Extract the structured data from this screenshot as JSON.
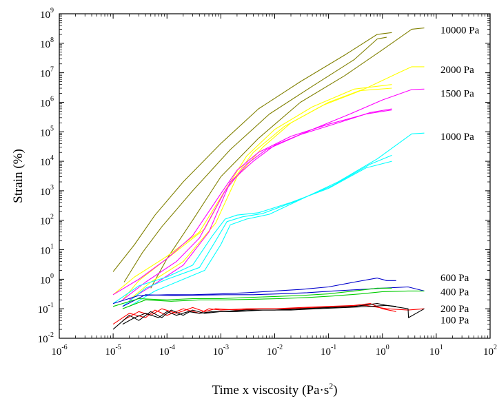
{
  "chart_data": {
    "type": "line",
    "title": "",
    "xlabel": "Time x viscosity (Pa·s",
    "xlabel_sup": "2",
    "xlabel_close": ")",
    "ylabel": "Strain (%)",
    "xscale": "log",
    "yscale": "log",
    "xlim": [
      1e-06,
      100
    ],
    "ylim": [
      0.01,
      1000000000.0
    ],
    "grid": false,
    "legend": "none",
    "x_ticks": [
      {
        "base": "10",
        "exp": "-6"
      },
      {
        "base": "10",
        "exp": "-5"
      },
      {
        "base": "10",
        "exp": "-4"
      },
      {
        "base": "10",
        "exp": "-3"
      },
      {
        "base": "10",
        "exp": "-2"
      },
      {
        "base": "10",
        "exp": "-1"
      },
      {
        "base": "10",
        "exp": "0"
      },
      {
        "base": "10",
        "exp": "1"
      },
      {
        "base": "10",
        "exp": "2"
      }
    ],
    "y_ticks": [
      {
        "base": "10",
        "exp": "-2"
      },
      {
        "base": "10",
        "exp": "-1"
      },
      {
        "base": "10",
        "exp": "0"
      },
      {
        "base": "10",
        "exp": "1"
      },
      {
        "base": "10",
        "exp": "2"
      },
      {
        "base": "10",
        "exp": "3"
      },
      {
        "base": "10",
        "exp": "4"
      },
      {
        "base": "10",
        "exp": "5"
      },
      {
        "base": "10",
        "exp": "6"
      },
      {
        "base": "10",
        "exp": "7"
      },
      {
        "base": "10",
        "exp": "8"
      },
      {
        "base": "10",
        "exp": "9"
      }
    ],
    "groups": [
      {
        "label": "10000 Pa",
        "color": "#808000",
        "label_at": [
          12,
          280000000.0
        ],
        "series": [
          {
            "x": [
              1e-05,
              2.5e-05,
              6e-05,
              0.0002,
              0.001,
              0.005,
              0.03,
              0.2,
              0.8,
              1.5
            ],
            "y": [
              1.8,
              15,
              150,
              2000,
              40000,
              600000,
              5000000,
              40000000,
              200000000,
              230000000
            ]
          },
          {
            "x": [
              1.6e-05,
              3.5e-05,
              8e-05,
              0.0003,
              0.0015,
              0.008,
              0.05,
              0.3,
              0.8,
              1.2
            ],
            "y": [
              0.8,
              8,
              60,
              1000,
              25000,
              400000,
              3500000,
              28000000,
              140000000,
              160000000
            ]
          },
          {
            "x": [
              5e-05,
              0.0001,
              0.0003,
              0.001,
              0.005,
              0.03,
              0.2,
              1,
              3.5,
              6
            ],
            "y": [
              0.5,
              5,
              100,
              3000,
              60000,
              1000000,
              8000000,
              60000000,
              300000000,
              330000000
            ]
          }
        ]
      },
      {
        "label": "2000 Pa",
        "color": "#ffff00",
        "label_at": [
          12,
          13000000.0
        ],
        "series": [
          {
            "x": [
              1e-05,
              2.5e-05,
              0.0001,
              0.0004,
              0.001,
              0.003,
              0.01,
              0.05,
              0.3,
              1.5
            ],
            "y": [
              0.3,
              1.2,
              6,
              40,
              600,
              15000,
              120000,
              700000,
              2800000,
              4000000
            ]
          },
          {
            "x": [
              1.5e-05,
              3e-05,
              0.0001,
              0.0005,
              0.0012,
              0.004,
              0.015,
              0.08,
              0.4,
              1.5
            ],
            "y": [
              0.2,
              0.9,
              5,
              50,
              1000,
              20000,
              150000,
              800000,
              2500000,
              3000000
            ]
          },
          {
            "x": [
              2e-05,
              5e-05,
              0.0002,
              0.0008,
              0.002,
              0.006,
              0.02,
              0.1,
              0.5,
              2,
              3.5,
              6
            ],
            "y": [
              0.2,
              0.8,
              4,
              80,
              3000,
              30000,
              200000,
              1000000,
              3000000,
              10000000,
              16000000,
              16000000
            ]
          }
        ]
      },
      {
        "label": "1500 Pa",
        "color": "#ff00ff",
        "label_at": [
          12,
          2000000.0
        ],
        "series": [
          {
            "x": [
              1e-05,
              3e-05,
              0.0001,
              0.0003,
              0.001,
              0.002,
              0.005,
              0.02,
              0.1,
              0.5,
              1.5
            ],
            "y": [
              0.3,
              1,
              5,
              30,
              800,
              5000,
              20000,
              70000,
              180000,
              400000,
              550000
            ]
          },
          {
            "x": [
              1.5e-05,
              4e-05,
              0.00015,
              0.0004,
              0.0012,
              0.003,
              0.007,
              0.03,
              0.15,
              0.6,
              1.5
            ],
            "y": [
              0.2,
              0.8,
              4,
              25,
              1000,
              8000,
              25000,
              80000,
              200000,
              450000,
              600000
            ]
          },
          {
            "x": [
              2e-05,
              6e-05,
              0.0002,
              0.0006,
              0.0015,
              0.004,
              0.01,
              0.05,
              0.25,
              1,
              3.5,
              6
            ],
            "y": [
              0.2,
              0.7,
              3,
              40,
              2000,
              10000,
              35000,
              120000,
              400000,
              1200000,
              2700000,
              2800000
            ]
          }
        ]
      },
      {
        "label": "1000 Pa",
        "color": "#00ffff",
        "label_at": [
          12,
          70000.0
        ],
        "series": [
          {
            "x": [
              1e-05,
              3e-05,
              0.0001,
              0.0003,
              0.0007,
              0.0012,
              0.002,
              0.005,
              0.02,
              0.1,
              0.5,
              1.5
            ],
            "y": [
              0.15,
              0.6,
              1.2,
              3,
              30,
              110,
              150,
              180,
              400,
              1200,
              6000,
              10000
            ]
          },
          {
            "x": [
              1.5e-05,
              4e-05,
              0.0001,
              0.0004,
              0.0008,
              0.0013,
              0.0025,
              0.006,
              0.025,
              0.12,
              0.6,
              1.5
            ],
            "y": [
              0.12,
              0.5,
              1,
              2.5,
              20,
              90,
              130,
              170,
              450,
              1500,
              8000,
              16000
            ]
          },
          {
            "x": [
              2e-05,
              6e-05,
              0.00015,
              0.0005,
              0.001,
              0.0015,
              0.003,
              0.008,
              0.03,
              0.15,
              0.8,
              3.5,
              6
            ],
            "y": [
              0.12,
              0.4,
              0.8,
              2,
              15,
              70,
              110,
              160,
              500,
              2000,
              12000,
              85000,
              90000
            ]
          }
        ]
      },
      {
        "label": "600 Pa",
        "color": "#0000cc",
        "label_at": [
          12,
          1.15
        ],
        "series": [
          {
            "x": [
              1e-05,
              3e-05,
              0.0001,
              0.0003,
              0.001,
              0.003,
              0.01,
              0.03,
              0.1,
              0.3,
              0.8,
              1.2,
              1.8
            ],
            "y": [
              0.15,
              0.28,
              0.3,
              0.3,
              0.32,
              0.35,
              0.4,
              0.45,
              0.55,
              0.8,
              1.1,
              0.9,
              0.9
            ]
          },
          {
            "x": [
              1.5e-05,
              4e-05,
              0.00012,
              0.0004,
              0.0012,
              0.004,
              0.012,
              0.04,
              0.12,
              0.4,
              1,
              3,
              6
            ],
            "y": [
              0.12,
              0.3,
              0.28,
              0.29,
              0.3,
              0.3,
              0.32,
              0.35,
              0.4,
              0.45,
              0.5,
              0.55,
              0.4
            ]
          }
        ]
      },
      {
        "label": "400 Pa",
        "color": "#00cc00",
        "label_at": [
          12,
          0.38
        ],
        "series": [
          {
            "x": [
              1e-05,
              3e-05,
              0.0001,
              0.0003,
              0.001,
              0.003,
              0.01,
              0.03,
              0.1,
              0.3,
              0.8,
              1.5
            ],
            "y": [
              0.12,
              0.22,
              0.2,
              0.22,
              0.22,
              0.24,
              0.26,
              0.28,
              0.32,
              0.4,
              0.5,
              0.5
            ]
          },
          {
            "x": [
              1.5e-05,
              4e-05,
              0.00012,
              0.0004,
              0.0012,
              0.004,
              0.012,
              0.04,
              0.12,
              0.4,
              1,
              3,
              6
            ],
            "y": [
              0.1,
              0.2,
              0.18,
              0.2,
              0.2,
              0.21,
              0.22,
              0.24,
              0.27,
              0.32,
              0.38,
              0.4,
              0.4
            ]
          }
        ]
      },
      {
        "label": "200 Pa",
        "color": "#ff0000",
        "label_at": [
          12,
          0.1
        ],
        "series": [
          {
            "x": [
              1e-05,
              2e-05,
              4e-05,
              6e-05,
              0.0001,
              0.0002,
              0.0004,
              0.0006,
              0.001,
              0.003,
              0.01,
              0.03,
              0.1,
              0.3,
              0.6,
              1,
              1.8
            ],
            "y": [
              0.03,
              0.07,
              0.05,
              0.09,
              0.06,
              0.1,
              0.07,
              0.1,
              0.09,
              0.1,
              0.1,
              0.11,
              0.12,
              0.13,
              0.15,
              0.1,
              0.08
            ]
          },
          {
            "x": [
              1.5e-05,
              3e-05,
              5e-05,
              8e-05,
              0.00015,
              0.0003,
              0.0005,
              0.0008,
              0.002,
              0.006,
              0.02,
              0.06,
              0.2,
              0.5,
              1.2,
              3,
              6
            ],
            "y": [
              0.04,
              0.08,
              0.06,
              0.1,
              0.07,
              0.11,
              0.08,
              0.1,
              0.09,
              0.1,
              0.1,
              0.11,
              0.12,
              0.13,
              0.1,
              0.09,
              0.1
            ]
          }
        ]
      },
      {
        "label": "100 Pa",
        "color": "#000000",
        "label_at": [
          12,
          0.042
        ],
        "series": [
          {
            "x": [
              1e-05,
              2e-05,
              3e-05,
              5e-05,
              8e-05,
              0.00012,
              0.0002,
              0.0003,
              0.0005,
              0.001,
              0.003,
              0.01,
              0.03,
              0.1,
              0.3,
              0.8,
              1.2,
              1.8
            ],
            "y": [
              0.02,
              0.06,
              0.04,
              0.08,
              0.05,
              0.09,
              0.06,
              0.09,
              0.07,
              0.08,
              0.09,
              0.09,
              0.1,
              0.11,
              0.12,
              0.15,
              0.13,
              0.12
            ]
          },
          {
            "x": [
              1.5e-05,
              2.5e-05,
              4e-05,
              7e-05,
              0.0001,
              0.00015,
              0.00025,
              0.0004,
              0.0007,
              0.002,
              0.006,
              0.02,
              0.06,
              0.2,
              0.6,
              1.2,
              3,
              3.05,
              6
            ],
            "y": [
              0.03,
              0.05,
              0.07,
              0.05,
              0.08,
              0.06,
              0.08,
              0.07,
              0.08,
              0.08,
              0.09,
              0.09,
              0.1,
              0.11,
              0.12,
              0.13,
              0.1,
              0.05,
              0.1
            ]
          }
        ]
      }
    ]
  }
}
